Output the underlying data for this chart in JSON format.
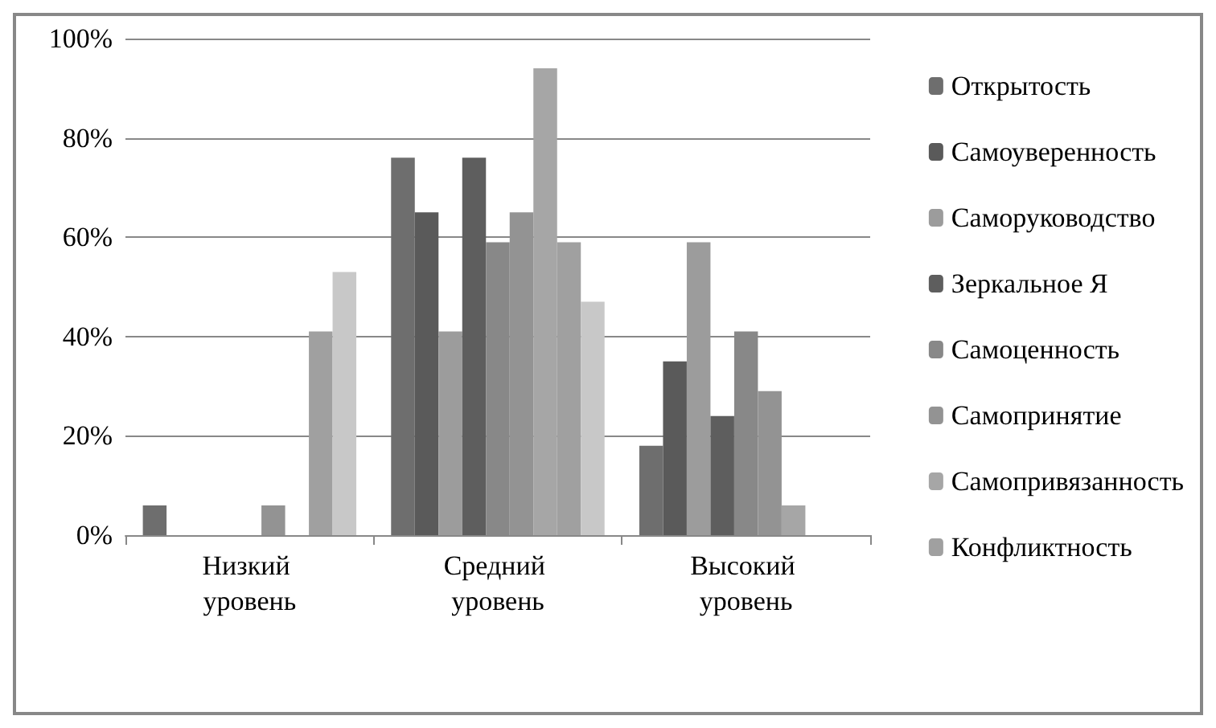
{
  "chart_data": {
    "type": "bar",
    "categories": [
      "Низкий уровень",
      "Средний уровень",
      "Высокий уровень"
    ],
    "series": [
      {
        "name": "Открытость",
        "color": "#6e6e6e",
        "values": [
          6,
          76,
          18
        ]
      },
      {
        "name": "Самоуверенность",
        "color": "#5a5a5a",
        "values": [
          0,
          65,
          35
        ]
      },
      {
        "name": "Саморуководство",
        "color": "#9c9c9c",
        "values": [
          0,
          41,
          59
        ]
      },
      {
        "name": "Зеркальное Я",
        "color": "#5e5e5e",
        "values": [
          0,
          76,
          24
        ]
      },
      {
        "name": "Самоценность",
        "color": "#888888",
        "values": [
          0,
          59,
          41
        ]
      },
      {
        "name": "Самопринятие",
        "color": "#939393",
        "values": [
          6,
          65,
          29
        ]
      },
      {
        "name": "Самопривязанность",
        "color": "#a6a6a6",
        "values": [
          0,
          94,
          6
        ]
      },
      {
        "name": "Конфликтность",
        "color": "#a0a0a0",
        "values": [
          41,
          59,
          0
        ]
      },
      {
        "color": "#c8c8c8",
        "values": [
          53,
          47,
          0
        ]
      }
    ],
    "ylim": [
      0,
      100
    ],
    "yticks": [
      {
        "value": 0,
        "label": "0%"
      },
      {
        "value": 20,
        "label": "20%"
      },
      {
        "value": 40,
        "label": "40%"
      },
      {
        "value": 60,
        "label": "60%"
      },
      {
        "value": 80,
        "label": "80%"
      },
      {
        "value": 100,
        "label": "100%"
      }
    ],
    "grid": "y",
    "legend": "right"
  }
}
